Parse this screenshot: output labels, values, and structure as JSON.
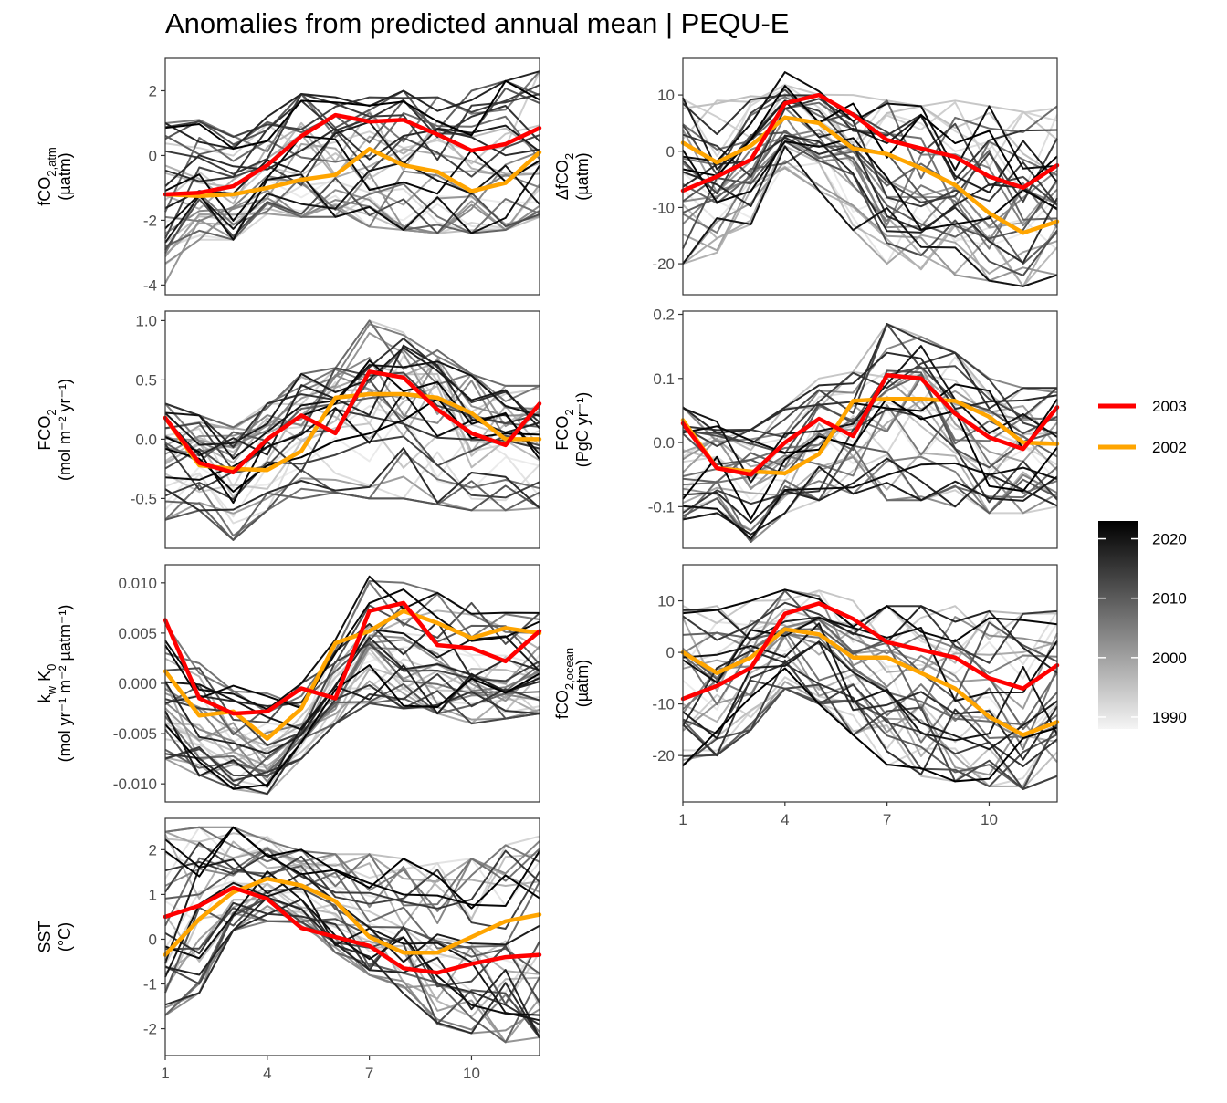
{
  "title": "Anomalies from predicted annual mean | PEQU-E",
  "colors": {
    "highlight_2003": "#ff0000",
    "highlight_2002": "#ffa500",
    "background_line_dark": "#000000",
    "background_line_light": "#f0f0f0"
  },
  "legend": {
    "items": [
      {
        "label": "2003",
        "color": "#ff0000"
      },
      {
        "label": "2002",
        "color": "#ffa500"
      }
    ],
    "colorbar": {
      "ticks": [
        "2020",
        "2010",
        "2000",
        "1990"
      ],
      "range": [
        1988,
        2023
      ]
    }
  },
  "chart_data": [
    {
      "type": "line",
      "panel": "fco2-atm",
      "ylabel": {
        "text": "fCO",
        "sub": "2,atm",
        "unit": "(µatm)"
      },
      "ylim": [
        -4.3,
        3.0
      ],
      "yticks": [
        -4,
        -2,
        0,
        2
      ],
      "ytick_labels": [
        "-4",
        "-2",
        "0",
        "2"
      ],
      "xlim": [
        1,
        12
      ],
      "xticks": [
        1,
        4,
        7,
        10
      ],
      "show_xticks": false,
      "series": [
        {
          "name": "2003",
          "x": [
            1,
            2,
            3,
            4,
            5,
            6,
            7,
            8,
            9,
            10,
            11,
            12
          ],
          "y": [
            -1.2,
            -1.15,
            -0.95,
            -0.3,
            0.6,
            1.25,
            1.05,
            1.1,
            0.65,
            0.15,
            0.35,
            0.85
          ]
        },
        {
          "name": "2002",
          "x": [
            1,
            2,
            3,
            4,
            5,
            6,
            7,
            8,
            9,
            10,
            11,
            12
          ],
          "y": [
            -1.2,
            -1.25,
            -1.2,
            -1.0,
            -0.75,
            -0.6,
            0.2,
            -0.3,
            -0.5,
            -1.1,
            -0.85,
            0.1
          ]
        }
      ],
      "background_years": [
        1990,
        2023
      ],
      "background_envelope": {
        "low": [
          -4.1,
          -2.6,
          -2.6,
          -1.8,
          -1.9,
          -1.9,
          -2.2,
          -2.3,
          -2.4,
          -2.4,
          -2.3,
          -1.9
        ],
        "high": [
          1.0,
          1.1,
          0.6,
          1.2,
          1.9,
          1.8,
          1.8,
          2.0,
          1.8,
          2.0,
          2.3,
          2.6
        ]
      }
    },
    {
      "type": "line",
      "panel": "delta-fco2",
      "ylabel": {
        "text": "ΔfCO",
        "sub": "2",
        "unit": "(µatm)"
      },
      "ylim": [
        -25.5,
        16.5
      ],
      "yticks": [
        -20,
        -10,
        0,
        10
      ],
      "ytick_labels": [
        "-20",
        "-10",
        "0",
        "10"
      ],
      "xlim": [
        1,
        12
      ],
      "xticks": [
        1,
        4,
        7,
        10
      ],
      "show_xticks": false,
      "series": [
        {
          "name": "2003",
          "x": [
            1,
            2,
            3,
            4,
            5,
            6,
            7,
            8,
            9,
            10,
            11,
            12
          ],
          "y": [
            -7.0,
            -4.5,
            -1.5,
            8.5,
            10.0,
            6.5,
            2.0,
            0.5,
            -1.0,
            -4.5,
            -6.5,
            -2.5
          ]
        },
        {
          "name": "2002",
          "x": [
            1,
            2,
            3,
            4,
            5,
            6,
            7,
            8,
            9,
            10,
            11,
            12
          ],
          "y": [
            1.5,
            -2.0,
            1.0,
            6.0,
            5.0,
            0.5,
            -0.5,
            -3.0,
            -6.0,
            -11.0,
            -14.5,
            -12.5
          ]
        }
      ],
      "background_years": [
        1990,
        2023
      ],
      "background_envelope": {
        "low": [
          -20.0,
          -18.0,
          -13.0,
          -3.0,
          -7.0,
          -14.0,
          -20.0,
          -21.0,
          -22.0,
          -23.0,
          -24.0,
          -22.0
        ],
        "high": [
          11.0,
          9.0,
          10.0,
          14.5,
          12.0,
          10.0,
          9.0,
          8.0,
          9.0,
          8.0,
          7.0,
          8.0
        ]
      }
    },
    {
      "type": "line",
      "panel": "fco2-flux-area",
      "ylabel": {
        "text": "FCO",
        "sub": "2",
        "unit": "(mol m⁻² yr⁻¹)"
      },
      "ylim": [
        -0.92,
        1.08
      ],
      "yticks": [
        -0.5,
        0.0,
        0.5,
        1.0
      ],
      "ytick_labels": [
        "-0.5",
        "0.0",
        "0.5",
        "1.0"
      ],
      "xlim": [
        1,
        12
      ],
      "xticks": [
        1,
        4,
        7,
        10
      ],
      "show_xticks": false,
      "series": [
        {
          "name": "2003",
          "x": [
            1,
            2,
            3,
            4,
            5,
            6,
            7,
            8,
            9,
            10,
            11,
            12
          ],
          "y": [
            0.18,
            -0.2,
            -0.28,
            0.0,
            0.2,
            0.05,
            0.57,
            0.52,
            0.25,
            0.05,
            -0.05,
            0.3
          ]
        },
        {
          "name": "2002",
          "x": [
            1,
            2,
            3,
            4,
            5,
            6,
            7,
            8,
            9,
            10,
            11,
            12
          ],
          "y": [
            0.18,
            -0.22,
            -0.25,
            -0.26,
            -0.1,
            0.35,
            0.38,
            0.38,
            0.35,
            0.22,
            0.0,
            0.0
          ]
        }
      ],
      "background_years": [
        1990,
        2023
      ],
      "background_envelope": {
        "low": [
          -0.68,
          -0.6,
          -0.85,
          -0.6,
          -0.5,
          -0.45,
          -0.5,
          -0.5,
          -0.55,
          -0.6,
          -0.6,
          -0.58
        ],
        "high": [
          0.3,
          0.2,
          0.1,
          0.3,
          0.55,
          0.6,
          1.0,
          0.9,
          0.75,
          0.55,
          0.45,
          0.45
        ]
      }
    },
    {
      "type": "line",
      "panel": "fco2-flux-total",
      "ylabel": {
        "text": "FCO",
        "sub": "2",
        "unit": "(PgC yr⁻¹)"
      },
      "ylim": [
        -0.165,
        0.205
      ],
      "yticks": [
        -0.1,
        0.0,
        0.1,
        0.2
      ],
      "ytick_labels": [
        "-0.1",
        "0.0",
        "0.1",
        "0.2"
      ],
      "xlim": [
        1,
        12
      ],
      "xticks": [
        1,
        4,
        7,
        10
      ],
      "show_xticks": false,
      "series": [
        {
          "name": "2003",
          "x": [
            1,
            2,
            3,
            4,
            5,
            6,
            7,
            8,
            9,
            10,
            11,
            12
          ],
          "y": [
            0.03,
            -0.04,
            -0.05,
            0.0,
            0.037,
            0.01,
            0.105,
            0.1,
            0.045,
            0.008,
            -0.01,
            0.055
          ]
        },
        {
          "name": "2002",
          "x": [
            1,
            2,
            3,
            4,
            5,
            6,
            7,
            8,
            9,
            10,
            11,
            12
          ],
          "y": [
            0.035,
            -0.04,
            -0.045,
            -0.048,
            -0.018,
            0.065,
            0.068,
            0.068,
            0.065,
            0.04,
            0.0,
            -0.002
          ]
        }
      ],
      "background_years": [
        1990,
        2023
      ],
      "background_envelope": {
        "low": [
          -0.12,
          -0.11,
          -0.155,
          -0.11,
          -0.09,
          -0.08,
          -0.09,
          -0.09,
          -0.1,
          -0.11,
          -0.11,
          -0.1
        ],
        "high": [
          0.055,
          0.04,
          0.02,
          0.055,
          0.1,
          0.11,
          0.185,
          0.165,
          0.14,
          0.1,
          0.085,
          0.085
        ]
      }
    },
    {
      "type": "line",
      "panel": "kw-k0",
      "ylabel": {
        "text": "k",
        "sub": "w",
        "text2": " K",
        "sub2": "0",
        "unit": "(mol yr⁻¹ m⁻² µatm⁻¹)"
      },
      "ylim": [
        -0.0118,
        0.0118
      ],
      "yticks": [
        -0.01,
        -0.005,
        0.0,
        0.005,
        0.01
      ],
      "ytick_labels": [
        "-0.010",
        "-0.005",
        "0.000",
        "0.005",
        "0.010"
      ],
      "xlim": [
        1,
        12
      ],
      "xticks": [
        1,
        4,
        7,
        10
      ],
      "show_xticks": false,
      "series": [
        {
          "name": "2003",
          "x": [
            1,
            2,
            3,
            4,
            5,
            6,
            7,
            8,
            9,
            10,
            11,
            12
          ],
          "y": [
            0.0063,
            -0.0015,
            -0.003,
            -0.0028,
            -0.0005,
            -0.0015,
            0.0072,
            0.008,
            0.0038,
            0.0035,
            0.0022,
            0.0052
          ]
        },
        {
          "name": "2002",
          "x": [
            1,
            2,
            3,
            4,
            5,
            6,
            7,
            8,
            9,
            10,
            11,
            12
          ],
          "y": [
            0.0012,
            -0.0032,
            -0.0028,
            -0.0055,
            -0.0025,
            0.004,
            0.0052,
            0.0072,
            0.006,
            0.0045,
            0.0055,
            0.005
          ]
        }
      ],
      "background_years": [
        1990,
        2023
      ],
      "background_envelope": {
        "low": [
          -0.0075,
          -0.0092,
          -0.0105,
          -0.011,
          -0.0075,
          -0.004,
          -0.002,
          -0.0025,
          -0.003,
          -0.004,
          -0.0035,
          -0.003
        ],
        "high": [
          0.006,
          0.002,
          0.0,
          -0.001,
          0.0,
          0.005,
          0.011,
          0.01,
          0.009,
          0.008,
          0.0075,
          0.007
        ]
      }
    },
    {
      "type": "line",
      "panel": "fco2-ocean",
      "ylabel": {
        "text": "fCO",
        "sub": "2,ocean",
        "unit": "(µatm)"
      },
      "ylim": [
        -29.0,
        17.0
      ],
      "yticks": [
        -20,
        -10,
        0,
        10
      ],
      "ytick_labels": [
        "-20",
        "-10",
        "0",
        "10"
      ],
      "xlim": [
        1,
        12
      ],
      "xticks": [
        1,
        4,
        7,
        10
      ],
      "xtick_labels": [
        "1",
        "4",
        "7",
        "10"
      ],
      "show_xticks": true,
      "series": [
        {
          "name": "2003",
          "x": [
            1,
            2,
            3,
            4,
            5,
            6,
            7,
            8,
            9,
            10,
            11,
            12
          ],
          "y": [
            -9.0,
            -6.5,
            -3.0,
            7.5,
            9.5,
            6.5,
            2.0,
            0.5,
            -1.0,
            -5.0,
            -7.0,
            -2.5
          ]
        },
        {
          "name": "2002",
          "x": [
            1,
            2,
            3,
            4,
            5,
            6,
            7,
            8,
            9,
            10,
            11,
            12
          ],
          "y": [
            0.0,
            -4.0,
            -1.0,
            4.5,
            3.5,
            -1.0,
            -1.0,
            -4.0,
            -7.0,
            -12.5,
            -16.0,
            -13.5
          ]
        }
      ],
      "background_years": [
        1990,
        2023
      ],
      "background_envelope": {
        "low": [
          -22.0,
          -20.0,
          -15.0,
          -7.0,
          -10.0,
          -16.0,
          -22.0,
          -24.0,
          -25.0,
          -26.0,
          -26.5,
          -24.0
        ],
        "high": [
          11.0,
          9.0,
          10.0,
          15.0,
          12.0,
          10.0,
          9.0,
          9.0,
          9.0,
          8.0,
          7.5,
          8.0
        ]
      }
    },
    {
      "type": "line",
      "panel": "sst",
      "ylabel": {
        "text": "SST",
        "unit": "(°C)"
      },
      "ylim": [
        -2.6,
        2.7
      ],
      "yticks": [
        -2,
        -1,
        0,
        1,
        2
      ],
      "ytick_labels": [
        "-2",
        "-1",
        "0",
        "1",
        "2"
      ],
      "xlim": [
        1,
        12
      ],
      "xticks": [
        1,
        4,
        7,
        10
      ],
      "xtick_labels": [
        "1",
        "4",
        "7",
        "10"
      ],
      "show_xticks": true,
      "series": [
        {
          "name": "2003",
          "x": [
            1,
            2,
            3,
            4,
            5,
            6,
            7,
            8,
            9,
            10,
            11,
            12
          ],
          "y": [
            0.5,
            0.75,
            1.15,
            0.9,
            0.25,
            0.05,
            -0.15,
            -0.65,
            -0.75,
            -0.55,
            -0.4,
            -0.35
          ]
        },
        {
          "name": "2002",
          "x": [
            1,
            2,
            3,
            4,
            5,
            6,
            7,
            8,
            9,
            10,
            11,
            12
          ],
          "y": [
            -0.35,
            0.45,
            1.05,
            1.35,
            1.2,
            0.85,
            0.05,
            -0.3,
            -0.3,
            0.05,
            0.4,
            0.55
          ]
        }
      ],
      "background_years": [
        1990,
        2023
      ],
      "background_envelope": {
        "low": [
          -1.7,
          -1.2,
          0.2,
          0.4,
          0.3,
          -0.3,
          -0.8,
          -1.4,
          -1.9,
          -2.1,
          -2.3,
          -2.2
        ],
        "high": [
          2.4,
          2.5,
          2.5,
          2.3,
          2.0,
          1.9,
          1.9,
          1.8,
          1.7,
          1.8,
          2.1,
          2.3
        ]
      }
    }
  ]
}
